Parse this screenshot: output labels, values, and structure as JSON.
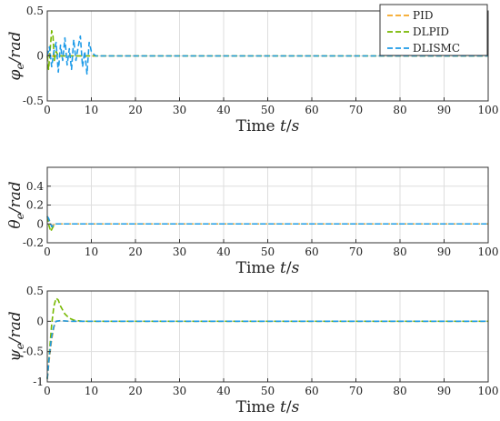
{
  "chart_data": [
    {
      "type": "line",
      "xlabel": "Time t/s",
      "ylabel": "φe/rad",
      "xlim": [
        0,
        100
      ],
      "ylim": [
        -0.5,
        0.5
      ],
      "xticks": [
        "0",
        "10",
        "20",
        "30",
        "40",
        "50",
        "60",
        "70",
        "80",
        "90",
        "100"
      ],
      "yticks": [
        "-0.5",
        "0",
        "0.5"
      ],
      "grid": true,
      "legend": "top-right",
      "series": [
        {
          "name": "PID",
          "color": "#F5A623",
          "x": [
            0,
            0.5,
            1,
            1.5,
            2,
            3,
            5,
            10,
            100
          ],
          "y": [
            0,
            0.02,
            -0.02,
            0.01,
            0,
            0,
            0,
            0,
            0
          ]
        },
        {
          "name": "DLPID",
          "color": "#77B800",
          "x": [
            0,
            0.3,
            0.7,
            1,
            1.3,
            1.6,
            2,
            2.5,
            3,
            4,
            5,
            10,
            100
          ],
          "y": [
            0,
            -0.15,
            0.1,
            0.28,
            0.22,
            -0.05,
            0.05,
            0,
            0,
            0,
            0,
            0,
            0
          ]
        },
        {
          "name": "DLISMC",
          "color": "#1E9BE8",
          "x": [
            0,
            0.5,
            1,
            1.5,
            2,
            2.5,
            3,
            3.5,
            4,
            4.5,
            5,
            5.5,
            6,
            6.5,
            7,
            7.5,
            8,
            8.5,
            9,
            9.5,
            10,
            10.5,
            11,
            100
          ],
          "y": [
            0,
            0.1,
            -0.12,
            0.05,
            0.15,
            -0.18,
            0.12,
            -0.05,
            0.2,
            -0.1,
            0.08,
            -0.15,
            0.18,
            -0.05,
            0.1,
            0.22,
            -0.12,
            0.05,
            -0.2,
            0.15,
            0.05,
            0.02,
            0,
            0
          ]
        }
      ]
    },
    {
      "type": "line",
      "xlabel": "Time t/s",
      "ylabel": "θe/rad",
      "xlim": [
        0,
        100
      ],
      "ylim": [
        -0.2,
        0.6
      ],
      "xticks": [
        "0",
        "10",
        "20",
        "30",
        "40",
        "50",
        "60",
        "70",
        "80",
        "90",
        "100"
      ],
      "yticks": [
        "-0.2",
        "0",
        "0.2",
        "0.4"
      ],
      "grid": true,
      "series": [
        {
          "name": "PID",
          "color": "#F5A623",
          "x": [
            0,
            0.5,
            1,
            2,
            100
          ],
          "y": [
            0.08,
            0.03,
            -0.02,
            0,
            0
          ]
        },
        {
          "name": "DLPID",
          "color": "#77B800",
          "x": [
            0,
            0.4,
            0.8,
            1.2,
            1.6,
            2,
            3,
            100
          ],
          "y": [
            0.08,
            -0.02,
            -0.08,
            -0.04,
            -0.01,
            0,
            0,
            0
          ]
        },
        {
          "name": "DLISMC",
          "color": "#1E9BE8",
          "x": [
            0,
            0.3,
            0.6,
            1,
            1.5,
            2,
            100
          ],
          "y": [
            0.08,
            0.06,
            0.02,
            -0.03,
            -0.01,
            0,
            0
          ]
        }
      ]
    },
    {
      "type": "line",
      "xlabel": "Time t/s",
      "ylabel": "ψe/rad",
      "xlim": [
        0,
        100
      ],
      "ylim": [
        -1,
        0.5
      ],
      "xticks": [
        "0",
        "10",
        "20",
        "30",
        "40",
        "50",
        "60",
        "70",
        "80",
        "90",
        "100"
      ],
      "yticks": [
        "-1",
        "-0.5",
        "0",
        "0.5"
      ],
      "grid": true,
      "series": [
        {
          "name": "PID",
          "color": "#F5A623",
          "x": [
            0,
            0.5,
            1,
            1.5,
            2,
            3,
            5,
            100
          ],
          "y": [
            -0.95,
            -0.6,
            -0.3,
            -0.1,
            0,
            0.01,
            0,
            0
          ]
        },
        {
          "name": "DLPID",
          "color": "#77B800",
          "x": [
            0,
            0.5,
            1,
            1.5,
            2,
            2.5,
            3,
            4,
            5,
            6,
            8,
            10,
            100
          ],
          "y": [
            -0.95,
            -0.5,
            -0.05,
            0.25,
            0.38,
            0.35,
            0.25,
            0.12,
            0.05,
            0.02,
            0,
            0,
            0
          ]
        },
        {
          "name": "DLISMC",
          "color": "#1E9BE8",
          "x": [
            0,
            0.5,
            1,
            1.5,
            2,
            3,
            5,
            100
          ],
          "y": [
            -0.95,
            -0.55,
            -0.25,
            -0.08,
            0,
            0.01,
            0,
            0
          ]
        }
      ]
    }
  ]
}
